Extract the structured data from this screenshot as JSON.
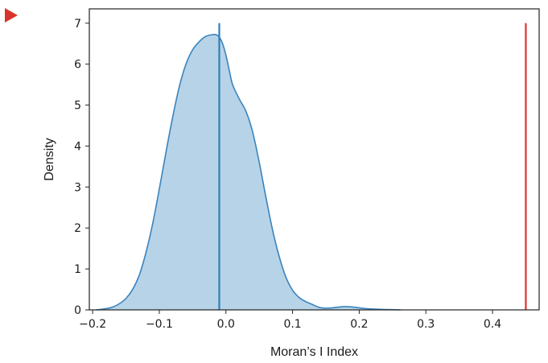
{
  "colors": {
    "marker": "#d9342b",
    "density_fill": "#b7d3e8",
    "density_line": "#3a84bd",
    "mean_line": "#2f7fb8",
    "observed_line": "#e0322c",
    "axis": "#222222"
  },
  "run_marker_icon": "play-triangle-icon",
  "chart_data": {
    "type": "area",
    "title": "",
    "xlabel": "Moran’s I Index",
    "ylabel": "Density",
    "xlim": [
      -0.205,
      0.47
    ],
    "ylim": [
      0,
      7.35
    ],
    "xticks": [
      -0.2,
      -0.1,
      0.0,
      0.1,
      0.2,
      0.3,
      0.4
    ],
    "xtick_labels": [
      "−0.2",
      "−0.1",
      "0.0",
      "0.1",
      "0.2",
      "0.3",
      "0.4"
    ],
    "yticks": [
      0,
      1,
      2,
      3,
      4,
      5,
      6,
      7
    ],
    "ytick_labels": [
      "0",
      "1",
      "2",
      "3",
      "4",
      "5",
      "6",
      "7"
    ],
    "grid": false,
    "legend": "none",
    "series": [
      {
        "x": [
          -0.195,
          -0.18,
          -0.17,
          -0.16,
          -0.15,
          -0.14,
          -0.13,
          -0.12,
          -0.11,
          -0.1,
          -0.09,
          -0.08,
          -0.07,
          -0.06,
          -0.05,
          -0.04,
          -0.03,
          -0.02,
          -0.015,
          -0.01,
          -0.005,
          0.0,
          0.005,
          0.01,
          0.02,
          0.03,
          0.04,
          0.05,
          0.06,
          0.07,
          0.08,
          0.09,
          0.1,
          0.11,
          0.12,
          0.13,
          0.14,
          0.15,
          0.16,
          0.17,
          0.18,
          0.19,
          0.2,
          0.21,
          0.22,
          0.24,
          0.262
        ],
        "y": [
          0.0,
          0.03,
          0.07,
          0.15,
          0.28,
          0.5,
          0.85,
          1.4,
          2.1,
          2.95,
          3.85,
          4.7,
          5.45,
          6.0,
          6.35,
          6.55,
          6.68,
          6.72,
          6.72,
          6.66,
          6.5,
          6.22,
          5.85,
          5.5,
          5.15,
          4.85,
          4.35,
          3.6,
          2.75,
          1.95,
          1.3,
          0.8,
          0.48,
          0.3,
          0.2,
          0.13,
          0.06,
          0.04,
          0.05,
          0.07,
          0.08,
          0.07,
          0.05,
          0.03,
          0.02,
          0.01,
          0.0
        ]
      }
    ],
    "vlines": [
      {
        "x": -0.01,
        "ymax": 7.0,
        "color": "#2f7fb8"
      },
      {
        "x": 0.45,
        "ymax": 7.0,
        "color": "#e0322c"
      }
    ]
  }
}
